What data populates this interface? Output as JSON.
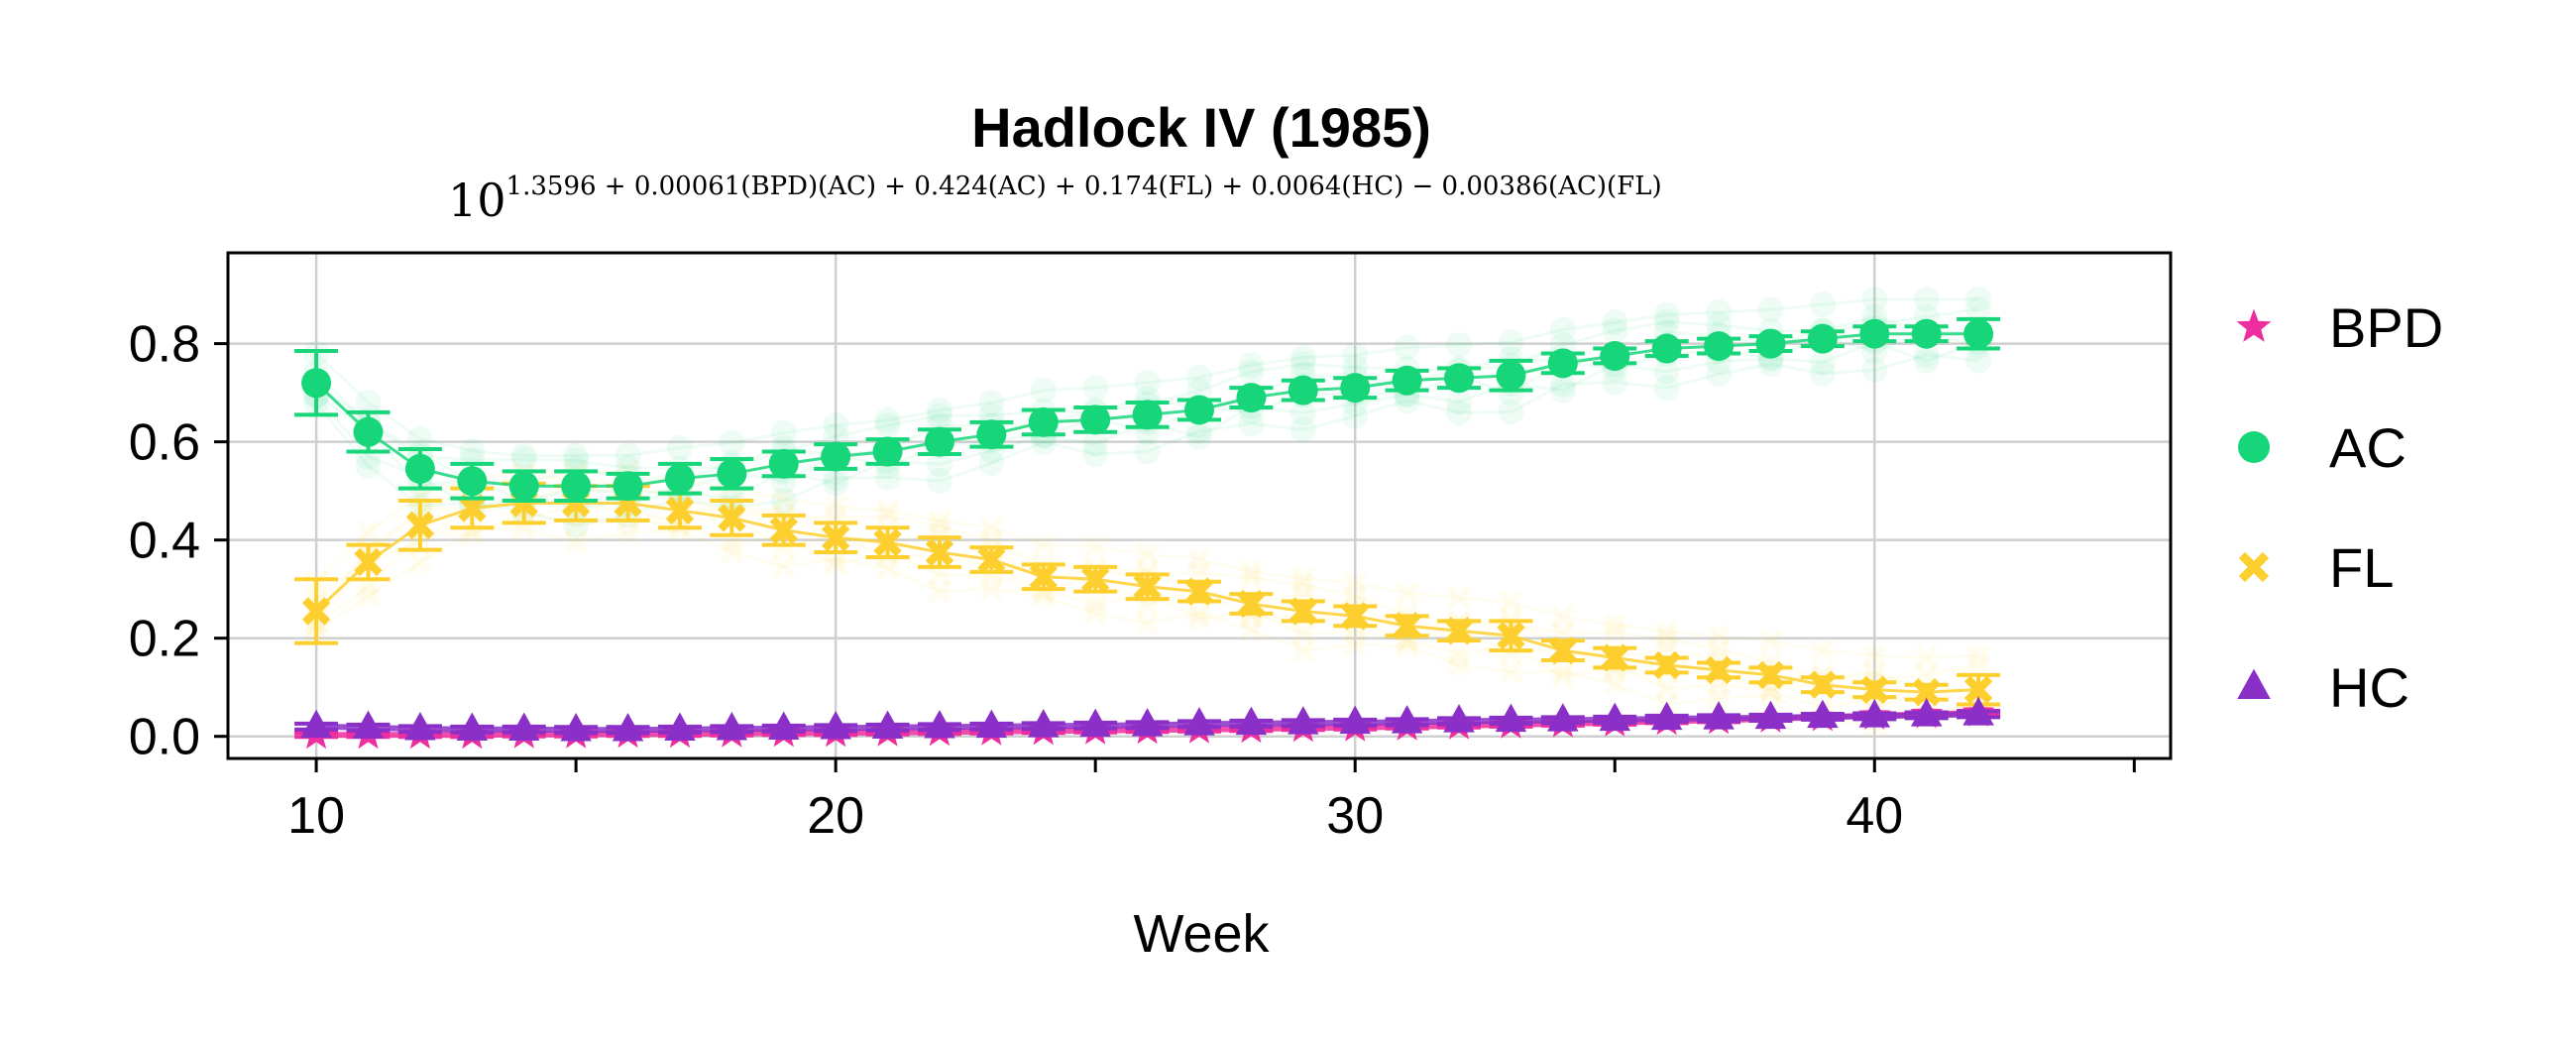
{
  "chart_data": {
    "type": "line",
    "title": "Hadlock IV (1985)",
    "subtitle_base": "10",
    "subtitle_exponent": "1.3596 + 0.00061(BPD)(AC) + 0.424(AC) + 0.174(FL) + 0.0064(HC) − 0.00386(AC)(FL)",
    "xlabel": "Week",
    "ylabel": "",
    "xlim": [
      8.3,
      45.7
    ],
    "ylim": [
      -0.045,
      0.985
    ],
    "xticks": [
      10,
      20,
      30,
      40
    ],
    "xticks_minor": [
      15,
      25,
      35,
      45
    ],
    "yticks": [
      0.0,
      0.2,
      0.4,
      0.6,
      0.8
    ],
    "ytick_labels": [
      "0.0",
      "0.2",
      "0.4",
      "0.6",
      "0.8"
    ],
    "grid": true,
    "legend_position": "right",
    "x": [
      10,
      11,
      12,
      13,
      14,
      15,
      16,
      17,
      18,
      19,
      20,
      21,
      22,
      23,
      24,
      25,
      26,
      27,
      28,
      29,
      30,
      31,
      32,
      33,
      34,
      35,
      36,
      37,
      38,
      39,
      40,
      41,
      42
    ],
    "series": [
      {
        "name": "BPD",
        "marker": "star",
        "color": "#ee2e9e",
        "values": [
          0.003,
          0.003,
          0.003,
          0.003,
          0.004,
          0.004,
          0.005,
          0.005,
          0.006,
          0.007,
          0.007,
          0.008,
          0.009,
          0.01,
          0.011,
          0.012,
          0.013,
          0.014,
          0.015,
          0.017,
          0.018,
          0.02,
          0.022,
          0.024,
          0.026,
          0.028,
          0.031,
          0.033,
          0.036,
          0.039,
          0.042,
          0.045,
          0.048
        ],
        "errors": [
          0.004,
          0.004,
          0.004,
          0.004,
          0.004,
          0.004,
          0.004,
          0.004,
          0.004,
          0.004,
          0.004,
          0.004,
          0.004,
          0.004,
          0.004,
          0.004,
          0.004,
          0.004,
          0.004,
          0.004,
          0.004,
          0.004,
          0.004,
          0.004,
          0.004,
          0.004,
          0.004,
          0.004,
          0.004,
          0.004,
          0.004,
          0.004,
          0.004
        ]
      },
      {
        "name": "AC",
        "marker": "circle",
        "color": "#17d67a",
        "values": [
          0.72,
          0.62,
          0.545,
          0.52,
          0.51,
          0.51,
          0.51,
          0.525,
          0.535,
          0.555,
          0.57,
          0.58,
          0.6,
          0.615,
          0.64,
          0.645,
          0.655,
          0.665,
          0.69,
          0.705,
          0.71,
          0.725,
          0.73,
          0.735,
          0.76,
          0.775,
          0.79,
          0.795,
          0.8,
          0.81,
          0.82,
          0.82,
          0.82
        ],
        "errors": [
          0.065,
          0.04,
          0.04,
          0.035,
          0.03,
          0.03,
          0.025,
          0.03,
          0.03,
          0.025,
          0.025,
          0.025,
          0.025,
          0.025,
          0.025,
          0.025,
          0.025,
          0.02,
          0.02,
          0.02,
          0.02,
          0.02,
          0.02,
          0.03,
          0.02,
          0.015,
          0.015,
          0.015,
          0.015,
          0.015,
          0.015,
          0.015,
          0.03
        ]
      },
      {
        "name": "FL",
        "marker": "x",
        "color": "#fdcf2e",
        "values": [
          0.255,
          0.355,
          0.43,
          0.465,
          0.475,
          0.475,
          0.475,
          0.46,
          0.445,
          0.42,
          0.405,
          0.395,
          0.375,
          0.36,
          0.325,
          0.32,
          0.305,
          0.295,
          0.27,
          0.255,
          0.245,
          0.225,
          0.215,
          0.205,
          0.175,
          0.16,
          0.145,
          0.135,
          0.125,
          0.105,
          0.095,
          0.09,
          0.095
        ],
        "errors": [
          0.065,
          0.035,
          0.05,
          0.04,
          0.04,
          0.035,
          0.035,
          0.035,
          0.035,
          0.03,
          0.03,
          0.03,
          0.03,
          0.025,
          0.025,
          0.025,
          0.025,
          0.02,
          0.02,
          0.02,
          0.02,
          0.02,
          0.02,
          0.03,
          0.02,
          0.02,
          0.015,
          0.015,
          0.015,
          0.015,
          0.015,
          0.015,
          0.03
        ]
      },
      {
        "name": "HC",
        "marker": "triangle",
        "color": "#8a2fc7",
        "values": [
          0.02,
          0.018,
          0.015,
          0.014,
          0.014,
          0.013,
          0.013,
          0.014,
          0.015,
          0.016,
          0.017,
          0.018,
          0.019,
          0.02,
          0.021,
          0.022,
          0.023,
          0.025,
          0.026,
          0.027,
          0.028,
          0.029,
          0.031,
          0.032,
          0.033,
          0.034,
          0.036,
          0.037,
          0.038,
          0.04,
          0.041,
          0.043,
          0.045
        ],
        "errors": [
          0.006,
          0.006,
          0.006,
          0.006,
          0.006,
          0.006,
          0.006,
          0.006,
          0.006,
          0.006,
          0.006,
          0.006,
          0.006,
          0.006,
          0.006,
          0.006,
          0.006,
          0.006,
          0.006,
          0.006,
          0.006,
          0.006,
          0.006,
          0.006,
          0.006,
          0.006,
          0.006,
          0.006,
          0.006,
          0.006,
          0.006,
          0.006,
          0.006
        ]
      }
    ]
  }
}
